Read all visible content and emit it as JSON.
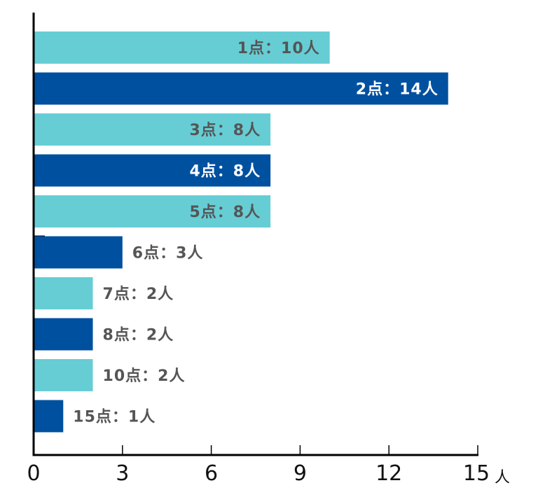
{
  "chart_data": {
    "type": "bar",
    "orientation": "horizontal",
    "categories": [
      "1点",
      "2点",
      "3点",
      "4点",
      "5点",
      "6点",
      "7点",
      "8点",
      "10点",
      "15点"
    ],
    "values": [
      10,
      14,
      8,
      8,
      8,
      3,
      2,
      2,
      2,
      1
    ],
    "bar_labels": [
      "1点：10人",
      "2点：14人",
      "3点：8人",
      "4点：8人",
      "5点：8人",
      "6点：3人",
      "7点：2人",
      "8点：2人",
      "10点：2人",
      "15点：1人"
    ],
    "xlim": [
      0,
      15
    ],
    "xticks": [
      0,
      3,
      6,
      9,
      12,
      15
    ],
    "x_unit": "人",
    "grid": false,
    "colors": {
      "light": "#66cdd4",
      "dark": "#0050a0",
      "label_on_light": "#555555",
      "label_on_dark": "#ffffff",
      "label_outside": "#555555",
      "axis": "#000000"
    }
  }
}
